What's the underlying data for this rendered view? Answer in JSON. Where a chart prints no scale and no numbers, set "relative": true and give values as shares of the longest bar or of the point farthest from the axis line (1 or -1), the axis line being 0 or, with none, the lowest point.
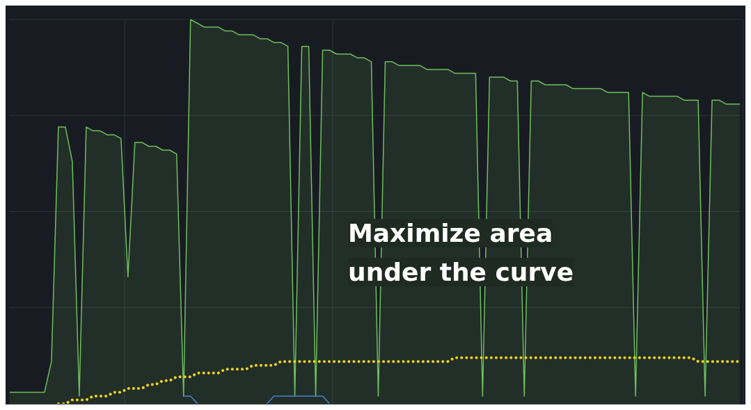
{
  "chart_data": {
    "type": "line",
    "relative": true,
    "grid": true,
    "marker": "none",
    "tick_labels": false,
    "annotations": [
      "Maximize area under the curve"
    ],
    "categories": [
      null,
      null,
      null,
      null,
      null,
      null,
      null,
      null,
      null,
      null,
      null,
      null,
      null,
      null,
      null,
      null,
      null,
      null,
      null,
      null,
      null,
      null,
      null,
      null,
      null,
      null,
      null,
      null,
      null,
      null,
      null,
      null,
      null,
      null,
      null,
      null,
      null,
      null,
      null,
      null,
      null,
      null,
      null,
      null,
      null,
      null,
      null,
      null,
      null,
      null,
      null,
      null,
      null,
      null,
      null,
      null,
      null,
      null,
      null,
      null,
      null,
      null,
      null,
      null,
      null,
      null,
      null,
      null,
      null,
      null,
      null,
      null,
      null,
      null,
      null,
      null,
      null,
      null,
      null,
      null,
      null,
      null,
      null,
      null,
      null,
      null,
      null,
      null,
      null,
      null,
      null,
      null,
      null,
      null,
      null,
      null,
      null,
      null,
      null,
      null,
      null,
      null,
      null,
      null,
      null,
      null
    ],
    "series": [
      {
        "type": "area",
        "color": "#6fbf5e",
        "values": [
          0.03,
          0.03,
          0.03,
          0.03,
          0.03,
          0.03,
          0.11,
          0.72,
          0.72,
          0.63,
          0.02,
          0.72,
          0.71,
          0.71,
          0.7,
          0.7,
          0.69,
          0.33,
          0.68,
          0.68,
          0.67,
          0.67,
          0.66,
          0.66,
          0.65,
          0.02,
          1.0,
          0.99,
          0.98,
          0.98,
          0.98,
          0.97,
          0.97,
          0.96,
          0.96,
          0.96,
          0.95,
          0.95,
          0.94,
          0.94,
          0.93,
          0.02,
          0.93,
          0.93,
          0.02,
          0.92,
          0.92,
          0.91,
          0.91,
          0.91,
          0.9,
          0.9,
          0.89,
          0.02,
          0.89,
          0.89,
          0.88,
          0.88,
          0.88,
          0.88,
          0.87,
          0.87,
          0.87,
          0.87,
          0.86,
          0.86,
          0.86,
          0.86,
          0.02,
          0.85,
          0.85,
          0.85,
          0.84,
          0.84,
          0.02,
          0.84,
          0.84,
          0.83,
          0.83,
          0.83,
          0.83,
          0.82,
          0.82,
          0.82,
          0.82,
          0.82,
          0.81,
          0.81,
          0.81,
          0.81,
          0.02,
          0.81,
          0.8,
          0.8,
          0.8,
          0.8,
          0.8,
          0.79,
          0.79,
          0.79,
          0.02,
          0.79,
          0.79,
          0.78,
          0.78,
          0.78
        ]
      },
      {
        "type": "line",
        "color": "#f2d31b",
        "line_style": "dotted",
        "values": [
          null,
          null,
          null,
          null,
          null,
          null,
          null,
          0,
          0,
          0.01,
          0.01,
          0.01,
          0.02,
          0.02,
          0.02,
          0.03,
          0.03,
          0.04,
          0.04,
          0.04,
          0.05,
          0.05,
          0.06,
          0.06,
          0.07,
          0.07,
          0.07,
          0.08,
          0.08,
          0.08,
          0.08,
          0.09,
          0.09,
          0.09,
          0.09,
          0.1,
          0.1,
          0.1,
          0.1,
          0.11,
          0.11,
          0.11,
          0.11,
          0.11,
          0.11,
          0.11,
          0.11,
          0.11,
          0.11,
          0.11,
          0.11,
          0.11,
          0.11,
          0.11,
          0.11,
          0.11,
          0.11,
          0.11,
          0.11,
          0.11,
          0.11,
          0.11,
          0.11,
          0.11,
          0.12,
          0.12,
          0.12,
          0.12,
          0.12,
          0.12,
          0.12,
          0.12,
          0.12,
          0.12,
          0.12,
          0.12,
          0.12,
          0.12,
          0.12,
          0.12,
          0.12,
          0.12,
          0.12,
          0.12,
          0.12,
          0.12,
          0.12,
          0.12,
          0.12,
          0.12,
          0.12,
          0.12,
          0.12,
          0.12,
          0.12,
          0.12,
          0.12,
          0.12,
          0.12,
          0.11,
          0.11,
          0.11,
          0.11,
          0.11,
          0.11,
          0.11
        ]
      },
      {
        "type": "line",
        "color": "#4a7fd6",
        "line_style": "solid",
        "values": [
          null,
          null,
          null,
          null,
          null,
          null,
          null,
          null,
          null,
          null,
          null,
          null,
          null,
          null,
          null,
          null,
          null,
          null,
          null,
          null,
          null,
          null,
          null,
          null,
          null,
          0.02,
          0.02,
          0,
          null,
          null,
          null,
          null,
          null,
          null,
          null,
          null,
          null,
          0,
          0.02,
          0.02,
          0.02,
          0.02,
          0.02,
          0.02,
          0.02,
          0.02,
          0,
          null,
          null,
          null,
          null,
          null,
          null,
          null,
          null,
          null,
          null,
          null,
          null,
          null,
          null,
          null,
          null,
          null,
          null,
          null,
          null,
          null,
          null,
          null,
          null,
          null,
          null,
          null,
          null,
          null,
          null,
          null,
          null,
          null,
          null,
          null,
          null,
          null,
          null,
          null,
          null,
          null,
          null,
          null,
          null,
          null,
          null,
          null,
          null,
          null,
          null,
          null,
          null,
          null,
          null,
          null,
          null,
          null,
          null,
          null
        ]
      }
    ]
  }
}
